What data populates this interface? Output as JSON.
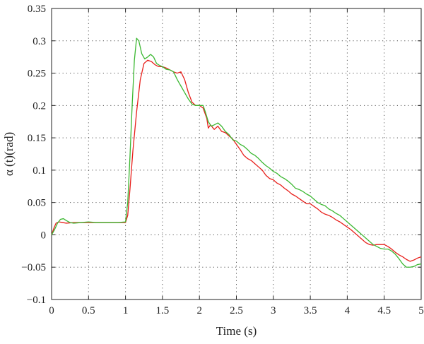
{
  "chart_data": {
    "type": "line",
    "title": "",
    "xlabel": "Time (s)",
    "ylabel": "α (t)(rad)",
    "xlim": [
      0,
      5
    ],
    "ylim": [
      -0.1,
      0.35
    ],
    "grid": true,
    "x_ticks": [
      0,
      0.5,
      1,
      1.5,
      2,
      2.5,
      3,
      3.5,
      4,
      4.5,
      5
    ],
    "x_tick_labels": [
      "0",
      "0.5",
      "1",
      "1.5",
      "2",
      "2.5",
      "3",
      "3.5",
      "4",
      "4.5",
      "5"
    ],
    "y_ticks": [
      -0.1,
      -0.05,
      0,
      0.05,
      0.1,
      0.15,
      0.2,
      0.25,
      0.3,
      0.35
    ],
    "y_tick_labels": [
      "−0.1",
      "−0.05",
      "0",
      "0.05",
      "0.1",
      "0.15",
      "0.2",
      "0.25",
      "0.3",
      "0.35"
    ],
    "series": [
      {
        "color": "#e8201c",
        "x": [
          0,
          0.03,
          0.06,
          0.1,
          0.15,
          0.2,
          0.3,
          0.4,
          0.5,
          0.6,
          0.7,
          0.8,
          0.9,
          1.0,
          1.03,
          1.06,
          1.1,
          1.15,
          1.2,
          1.25,
          1.3,
          1.35,
          1.4,
          1.45,
          1.5,
          1.55,
          1.6,
          1.65,
          1.7,
          1.75,
          1.8,
          1.85,
          1.9,
          1.95,
          2.0,
          2.05,
          2.1,
          2.12,
          2.15,
          2.2,
          2.25,
          2.3,
          2.35,
          2.4,
          2.45,
          2.5,
          2.55,
          2.6,
          2.65,
          2.7,
          2.75,
          2.8,
          2.85,
          2.9,
          2.95,
          3.0,
          3.05,
          3.1,
          3.15,
          3.2,
          3.25,
          3.3,
          3.35,
          3.4,
          3.45,
          3.5,
          3.55,
          3.6,
          3.65,
          3.7,
          3.75,
          3.8,
          3.85,
          3.9,
          3.95,
          4.0,
          4.05,
          4.1,
          4.15,
          4.2,
          4.25,
          4.3,
          4.35,
          4.4,
          4.45,
          4.5,
          4.55,
          4.6,
          4.65,
          4.7,
          4.75,
          4.8,
          4.85,
          4.9,
          4.95,
          5.0
        ],
        "y": [
          0,
          0.01,
          0.018,
          0.02,
          0.019,
          0.018,
          0.019,
          0.019,
          0.019,
          0.019,
          0.019,
          0.019,
          0.019,
          0.019,
          0.03,
          0.07,
          0.13,
          0.19,
          0.24,
          0.265,
          0.27,
          0.268,
          0.263,
          0.26,
          0.26,
          0.258,
          0.255,
          0.252,
          0.25,
          0.252,
          0.24,
          0.22,
          0.205,
          0.2,
          0.2,
          0.196,
          0.18,
          0.165,
          0.17,
          0.163,
          0.168,
          0.16,
          0.158,
          0.153,
          0.148,
          0.14,
          0.132,
          0.123,
          0.118,
          0.115,
          0.11,
          0.105,
          0.1,
          0.092,
          0.087,
          0.085,
          0.08,
          0.077,
          0.072,
          0.068,
          0.063,
          0.06,
          0.056,
          0.052,
          0.048,
          0.048,
          0.044,
          0.04,
          0.035,
          0.032,
          0.03,
          0.027,
          0.023,
          0.02,
          0.016,
          0.012,
          0.008,
          0.003,
          -0.002,
          -0.007,
          -0.012,
          -0.015,
          -0.016,
          -0.015,
          -0.015,
          -0.015,
          -0.018,
          -0.022,
          -0.027,
          -0.031,
          -0.034,
          -0.038,
          -0.041,
          -0.039,
          -0.036,
          -0.034
        ]
      },
      {
        "color": "#3cb832",
        "x": [
          0,
          0.04,
          0.08,
          0.12,
          0.16,
          0.2,
          0.25,
          0.3,
          0.4,
          0.5,
          0.6,
          0.7,
          0.8,
          0.9,
          1.0,
          1.03,
          1.06,
          1.09,
          1.12,
          1.15,
          1.18,
          1.22,
          1.26,
          1.3,
          1.34,
          1.38,
          1.42,
          1.46,
          1.5,
          1.55,
          1.6,
          1.65,
          1.7,
          1.75,
          1.8,
          1.85,
          1.9,
          1.95,
          2.0,
          2.05,
          2.08,
          2.12,
          2.16,
          2.2,
          2.25,
          2.3,
          2.35,
          2.4,
          2.45,
          2.5,
          2.55,
          2.6,
          2.65,
          2.7,
          2.75,
          2.8,
          2.85,
          2.9,
          2.95,
          3.0,
          3.05,
          3.1,
          3.15,
          3.2,
          3.25,
          3.3,
          3.35,
          3.4,
          3.45,
          3.5,
          3.55,
          3.6,
          3.65,
          3.7,
          3.75,
          3.8,
          3.85,
          3.9,
          3.95,
          4.0,
          4.05,
          4.1,
          4.15,
          4.2,
          4.25,
          4.3,
          4.35,
          4.4,
          4.45,
          4.5,
          4.55,
          4.6,
          4.65,
          4.7,
          4.75,
          4.8,
          4.85,
          4.9,
          4.95,
          5.0
        ],
        "y": [
          0,
          0.008,
          0.018,
          0.024,
          0.025,
          0.022,
          0.019,
          0.018,
          0.019,
          0.02,
          0.019,
          0.019,
          0.019,
          0.019,
          0.02,
          0.05,
          0.12,
          0.2,
          0.27,
          0.304,
          0.3,
          0.28,
          0.272,
          0.275,
          0.279,
          0.275,
          0.265,
          0.262,
          0.26,
          0.256,
          0.255,
          0.252,
          0.24,
          0.23,
          0.22,
          0.21,
          0.202,
          0.2,
          0.2,
          0.2,
          0.19,
          0.175,
          0.168,
          0.17,
          0.173,
          0.168,
          0.16,
          0.155,
          0.147,
          0.145,
          0.14,
          0.137,
          0.132,
          0.126,
          0.123,
          0.118,
          0.112,
          0.107,
          0.103,
          0.098,
          0.095,
          0.09,
          0.087,
          0.083,
          0.078,
          0.072,
          0.07,
          0.067,
          0.063,
          0.06,
          0.055,
          0.05,
          0.047,
          0.045,
          0.04,
          0.037,
          0.033,
          0.03,
          0.025,
          0.02,
          0.015,
          0.01,
          0.005,
          0.0,
          -0.005,
          -0.01,
          -0.015,
          -0.018,
          -0.021,
          -0.022,
          -0.022,
          -0.025,
          -0.03,
          -0.037,
          -0.045,
          -0.05,
          -0.05,
          -0.049,
          -0.046,
          -0.045
        ]
      }
    ]
  }
}
